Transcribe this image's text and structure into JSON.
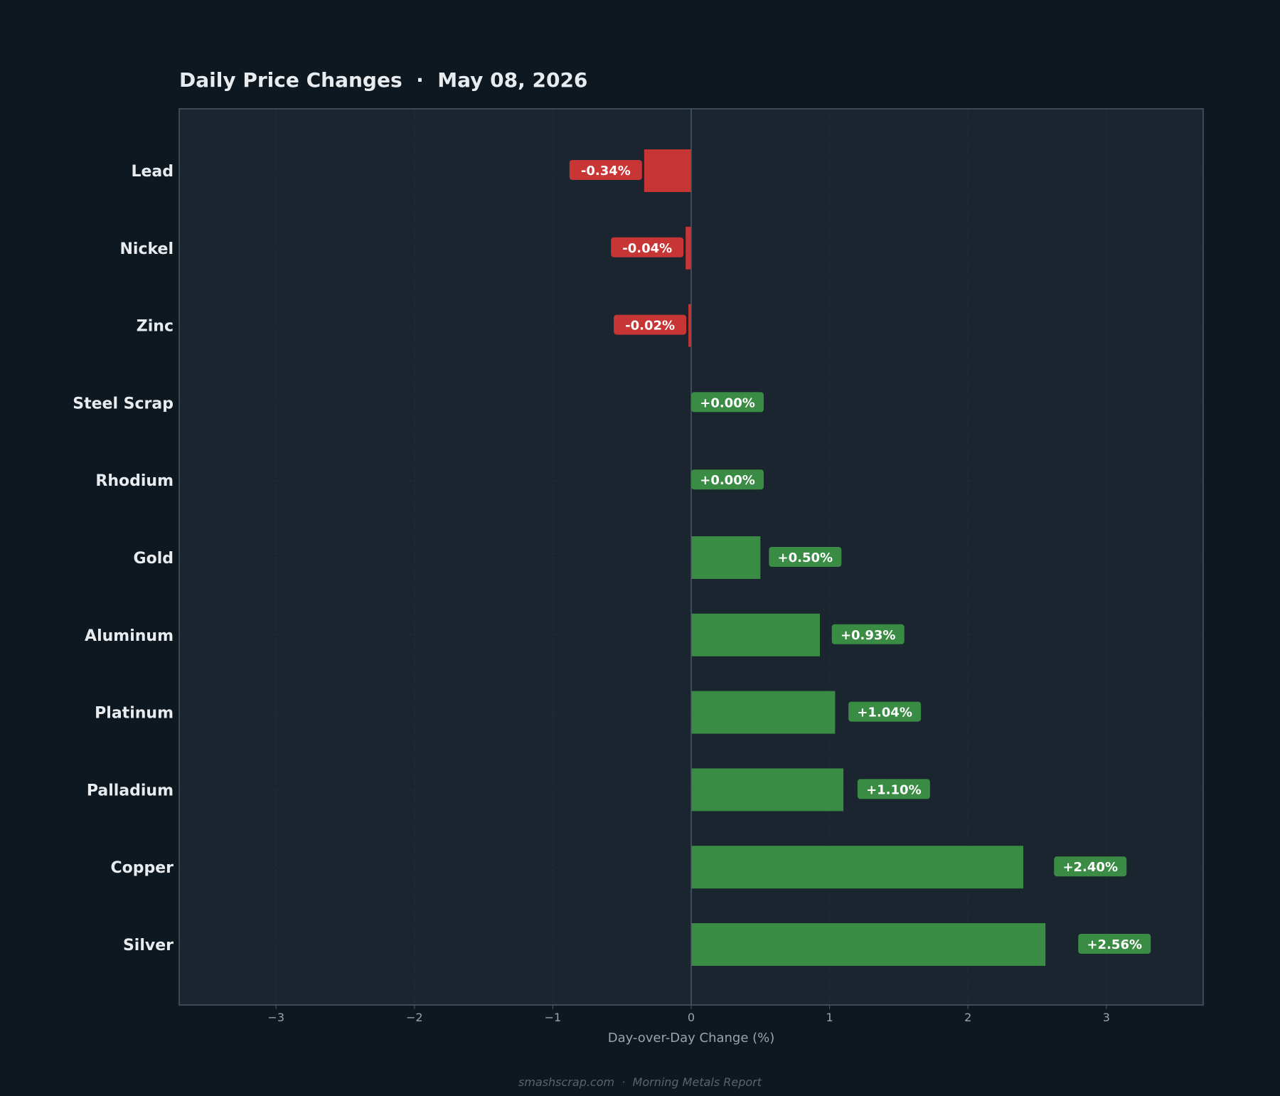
{
  "chart_data": {
    "type": "bar",
    "orientation": "horizontal",
    "title": "Daily Price Changes  ·  May 08, 2026",
    "xlabel": "Day-over-Day Change (%)",
    "ylabel": "",
    "xlim": [
      -3.7,
      3.7
    ],
    "xticks": [
      -3,
      -2,
      -1,
      0,
      1,
      2,
      3
    ],
    "xtick_labels": [
      "−3",
      "−2",
      "−1",
      "0",
      "1",
      "2",
      "3"
    ],
    "grid": true,
    "categories": [
      "Lead",
      "Nickel",
      "Zinc",
      "Steel Scrap",
      "Rhodium",
      "Gold",
      "Aluminum",
      "Platinum",
      "Palladium",
      "Copper",
      "Silver"
    ],
    "values": [
      -0.34,
      -0.04,
      -0.02,
      0.0,
      0.0,
      0.5,
      0.93,
      1.04,
      1.1,
      2.4,
      2.56
    ],
    "data_labels": [
      "-0.34%",
      "-0.04%",
      "-0.02%",
      "+0.00%",
      "+0.00%",
      "+0.50%",
      "+0.93%",
      "+1.04%",
      "+1.10%",
      "+2.40%",
      "+2.56%"
    ],
    "colors": {
      "positive": "#3a8c44",
      "negative": "#c83535",
      "plot_bg": "#1b2530",
      "page_bg": "#0e1821",
      "axis": "#4a5866",
      "text": "#e8ecef",
      "tick": "#9aa4ad"
    }
  },
  "footer": "smashscrap.com  ·  Morning Metals Report"
}
